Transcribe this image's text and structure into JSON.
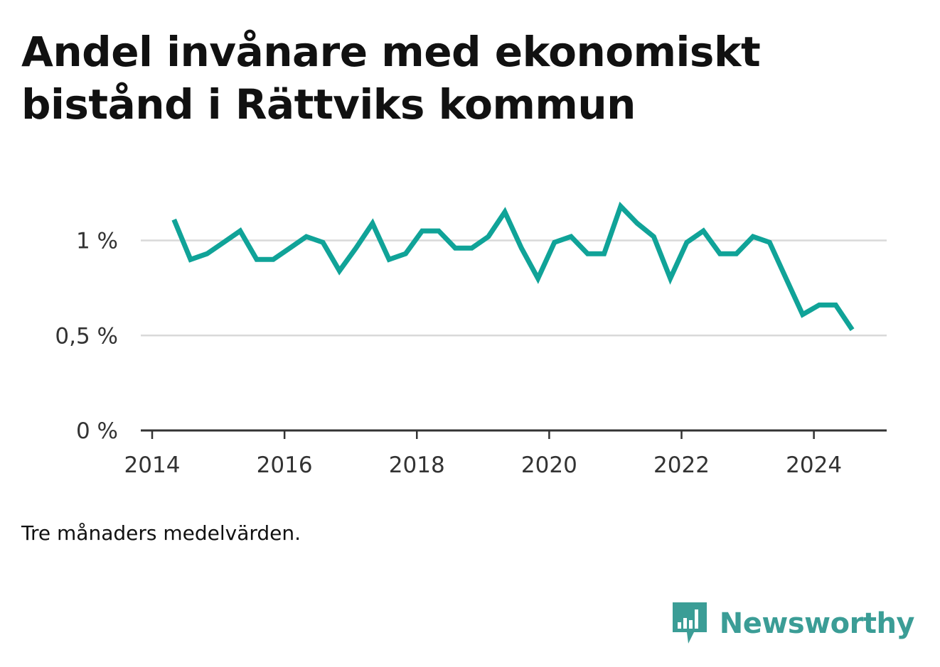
{
  "title_lines": [
    "Andel invånare med ekonomiskt",
    "bistånd i Rättviks kommun"
  ],
  "note": "Tre månaders medelvärden.",
  "brand": {
    "name": "Newsworthy",
    "icon": "newsworthy-bar-chart-icon",
    "color": "#3b9d96"
  },
  "colors": {
    "line": "#10a398",
    "grid": "#d9d9d9",
    "axis": "#333333"
  },
  "chart_data": {
    "type": "line",
    "title": "Andel invånare med ekonomiskt bistånd i Rättviks kommun",
    "xlabel": "",
    "ylabel": "",
    "xlim": [
      2014,
      2025.1
    ],
    "ylim": [
      0,
      1.2
    ],
    "x_ticks": [
      {
        "value": 2014,
        "label": "2014"
      },
      {
        "value": 2016,
        "label": "2016"
      },
      {
        "value": 2018,
        "label": "2018"
      },
      {
        "value": 2020,
        "label": "2020"
      },
      {
        "value": 2022,
        "label": "2022"
      },
      {
        "value": 2024,
        "label": "2024"
      }
    ],
    "y_ticks": [
      {
        "value": 0,
        "label": "0 %"
      },
      {
        "value": 0.5,
        "label": "0,5 %"
      },
      {
        "value": 1,
        "label": "1 %"
      }
    ],
    "grid": true,
    "legend": "none",
    "series": [
      {
        "x": [
          2014.33,
          2014.58,
          2014.83,
          2015.08,
          2015.33,
          2015.58,
          2015.83,
          2016.08,
          2016.33,
          2016.58,
          2016.83,
          2017.08,
          2017.33,
          2017.58,
          2017.83,
          2018.08,
          2018.33,
          2018.58,
          2018.83,
          2019.08,
          2019.33,
          2019.58,
          2019.83,
          2020.08,
          2020.33,
          2020.58,
          2020.83,
          2021.08,
          2021.33,
          2021.58,
          2021.83,
          2022.08,
          2022.33,
          2022.58,
          2022.83,
          2023.08,
          2023.33,
          2023.58,
          2023.83,
          2024.08,
          2024.33,
          2024.58
        ],
        "values": [
          1.11,
          0.9,
          0.93,
          0.99,
          1.05,
          0.9,
          0.9,
          0.96,
          1.02,
          0.99,
          0.84,
          0.96,
          1.09,
          0.9,
          0.93,
          1.05,
          1.05,
          0.96,
          0.96,
          1.02,
          1.15,
          0.96,
          0.8,
          0.99,
          1.02,
          0.93,
          0.93,
          1.18,
          1.09,
          1.02,
          0.8,
          0.99,
          1.05,
          0.93,
          0.93,
          1.02,
          0.99,
          0.8,
          0.61,
          0.66,
          0.66,
          0.53
        ]
      }
    ]
  }
}
